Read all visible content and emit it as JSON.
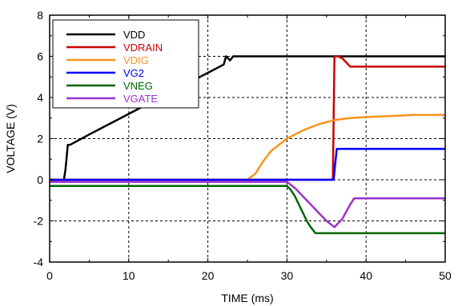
{
  "chart_data": {
    "type": "line",
    "xlabel": "TIME (ms)",
    "ylabel": "VOLTAGE (V)",
    "xlim": [
      0,
      50
    ],
    "ylim": [
      -4,
      8
    ],
    "x_ticks": [
      0,
      10,
      20,
      30,
      40,
      50
    ],
    "y_ticks": [
      -4,
      -2,
      0,
      2,
      4,
      6,
      8
    ],
    "grid": true,
    "legend_position": "top-left",
    "series": [
      {
        "name": "VDD",
        "color": "#000000",
        "x": [
          0,
          1.8,
          2.0,
          2.3,
          2.6,
          5,
          8,
          11,
          14,
          17,
          20,
          22,
          22.3,
          22.8,
          23.2,
          24,
          30,
          40,
          50
        ],
        "y": [
          0,
          0,
          0.5,
          1.7,
          1.7,
          2.2,
          2.8,
          3.4,
          4.0,
          4.6,
          5.2,
          5.6,
          6.0,
          5.8,
          6.0,
          6.0,
          6.0,
          6.0,
          6.0
        ]
      },
      {
        "name": "VDRAIN",
        "color": "#cc0000",
        "x": [
          0,
          35.8,
          35.9,
          36.0,
          36.4,
          37,
          38,
          38.5,
          40,
          50
        ],
        "y": [
          0,
          0,
          3.0,
          6.0,
          6.0,
          5.9,
          5.5,
          5.5,
          5.5,
          5.5
        ]
      },
      {
        "name": "VDIG",
        "color": "#f7941d",
        "x": [
          0,
          25,
          26,
          27,
          28,
          30,
          32,
          34,
          36,
          38,
          40,
          43,
          46,
          50
        ],
        "y": [
          0,
          0,
          0.3,
          0.9,
          1.4,
          2.0,
          2.4,
          2.7,
          2.9,
          3.0,
          3.05,
          3.1,
          3.15,
          3.15
        ]
      },
      {
        "name": "VG2",
        "color": "#0000ff",
        "x": [
          0,
          35.9,
          36.1,
          36.3,
          50
        ],
        "y": [
          0,
          0,
          0.8,
          1.5,
          1.5
        ]
      },
      {
        "name": "VNEG",
        "color": "#006600",
        "x": [
          0,
          30,
          30.5,
          31,
          31.5,
          32,
          32.5,
          33,
          33.6,
          34,
          40,
          50
        ],
        "y": [
          -0.3,
          -0.3,
          -0.5,
          -0.8,
          -1.2,
          -1.6,
          -2.0,
          -2.3,
          -2.6,
          -2.6,
          -2.6,
          -2.6
        ]
      },
      {
        "name": "VGATE",
        "color": "#9933cc",
        "x": [
          0,
          30,
          31,
          32,
          33,
          34,
          35,
          36,
          37,
          38,
          38.5,
          39,
          40,
          50
        ],
        "y": [
          -0.1,
          -0.1,
          -0.4,
          -0.8,
          -1.2,
          -1.6,
          -2.0,
          -2.3,
          -1.9,
          -1.2,
          -0.9,
          -0.9,
          -0.9,
          -0.9
        ]
      }
    ]
  }
}
